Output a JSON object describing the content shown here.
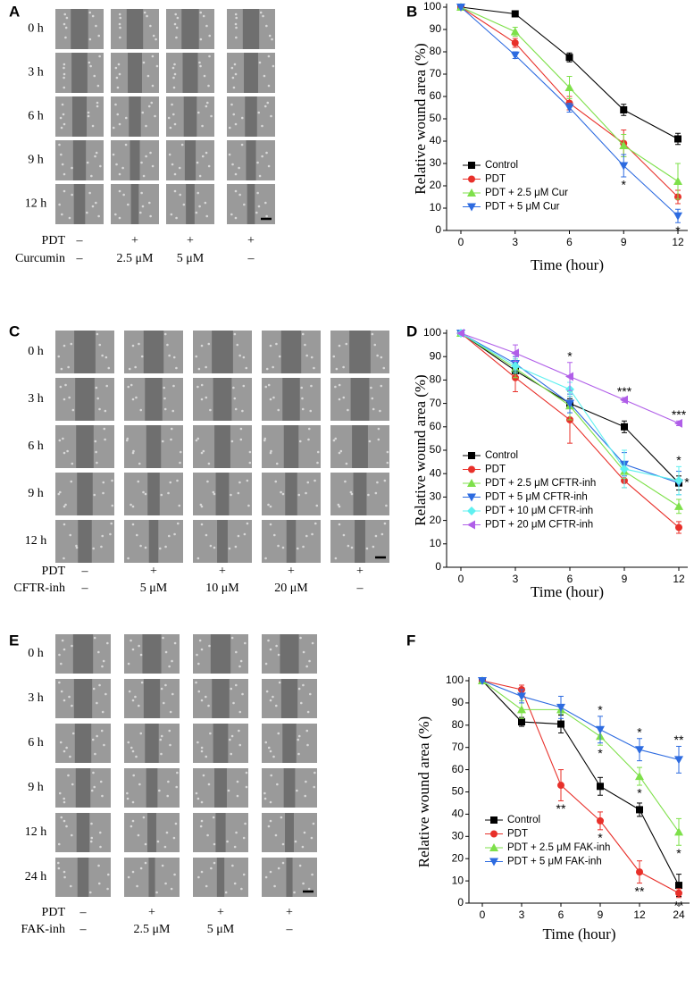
{
  "panel_labels": [
    "A",
    "B",
    "C",
    "D",
    "E",
    "F"
  ],
  "micrographs": [
    {
      "times": [
        "0 h",
        "3 h",
        "6 h",
        "9 h",
        "12 h"
      ],
      "conditions": [
        {
          "label": "PDT",
          "values": [
            "–",
            "+",
            "+",
            "+"
          ]
        },
        {
          "label": "Curcumin",
          "values": [
            "–",
            "2.5 μM",
            "5 μM",
            "–"
          ]
        }
      ]
    },
    {
      "times": [
        "0 h",
        "3 h",
        "6 h",
        "9 h",
        "12 h"
      ],
      "conditions": [
        {
          "label": "PDT",
          "values": [
            "–",
            "+",
            "+",
            "+",
            "+"
          ]
        },
        {
          "label": "CFTR-inh",
          "values": [
            "–",
            "5 μM",
            "10 μM",
            "20 μM",
            "–"
          ]
        }
      ]
    },
    {
      "times": [
        "0 h",
        "3 h",
        "6 h",
        "9 h",
        "12 h",
        "24 h"
      ],
      "conditions": [
        {
          "label": "PDT",
          "values": [
            "–",
            "+",
            "+",
            "+"
          ]
        },
        {
          "label": "FAK-inh",
          "values": [
            "–",
            "2.5 μM",
            "5 μM",
            "–"
          ]
        }
      ]
    }
  ],
  "chart_data": [
    {
      "type": "line",
      "xlabel": "Time (hour)",
      "ylabel": "Relative wound area (%)",
      "categories": [
        "0",
        "3",
        "6",
        "9",
        "12"
      ],
      "ylim": [
        0,
        100
      ],
      "yticks": [
        0,
        10,
        20,
        30,
        40,
        50,
        60,
        70,
        80,
        90,
        100
      ],
      "legend": "lower left",
      "series": [
        {
          "name": "Control",
          "color": "#000000",
          "marker": "square",
          "values": [
            100,
            97,
            77.5,
            54,
            41
          ],
          "errors": [
            0,
            1,
            2,
            2.5,
            2.5
          ],
          "significance": [
            null,
            null,
            null,
            null,
            null
          ]
        },
        {
          "name": "PDT",
          "color": "#e8302a",
          "marker": "circle",
          "values": [
            100,
            84,
            57,
            39,
            15
          ],
          "errors": [
            0,
            2,
            3,
            6,
            3
          ],
          "significance": [
            null,
            null,
            null,
            null,
            null
          ]
        },
        {
          "name": "PDT + 2.5 μM Cur",
          "color": "#7ee04a",
          "marker": "triangle-up",
          "values": [
            100,
            89,
            64,
            38,
            22
          ],
          "errors": [
            0,
            2,
            5,
            5,
            8
          ],
          "significance": [
            null,
            null,
            null,
            null,
            null
          ]
        },
        {
          "name": "PDT + 5 μM Cur",
          "color": "#2d6be0",
          "marker": "triangle-down",
          "values": [
            100,
            78.5,
            55,
            29,
            6.5
          ],
          "errors": [
            0,
            1.5,
            2,
            5,
            3
          ],
          "significance": [
            null,
            null,
            null,
            "*",
            "*"
          ]
        }
      ]
    },
    {
      "type": "line",
      "xlabel": "Time (hour)",
      "ylabel": "Relative wound area (%)",
      "categories": [
        "0",
        "3",
        "6",
        "9",
        "12"
      ],
      "ylim": [
        0,
        100
      ],
      "yticks": [
        0,
        10,
        20,
        30,
        40,
        50,
        60,
        70,
        80,
        90,
        100
      ],
      "legend": "lower left",
      "series": [
        {
          "name": "Control",
          "color": "#000000",
          "marker": "square",
          "values": [
            100,
            84,
            70,
            60,
            36
          ],
          "errors": [
            0,
            3,
            2,
            2.5,
            3
          ],
          "significance": [
            null,
            null,
            null,
            null,
            null
          ]
        },
        {
          "name": "PDT",
          "color": "#e8302a",
          "marker": "circle",
          "values": [
            100,
            81,
            63,
            37,
            17
          ],
          "errors": [
            0,
            6,
            10,
            3,
            2.5
          ],
          "significance": [
            null,
            null,
            null,
            null,
            null
          ]
        },
        {
          "name": "PDT + 2.5 μM CFTR-inh",
          "color": "#7ee04a",
          "marker": "triangle-up",
          "values": [
            100,
            85,
            69,
            41,
            26
          ],
          "errors": [
            0,
            4,
            6,
            3,
            3
          ],
          "significance": [
            null,
            null,
            null,
            null,
            null
          ]
        },
        {
          "name": "PDT + 5 μM CFTR-inh",
          "color": "#2d6be0",
          "marker": "triangle-down",
          "values": [
            100,
            87,
            70,
            44,
            36
          ],
          "errors": [
            0,
            3,
            4,
            5,
            5
          ],
          "significance": [
            null,
            null,
            null,
            null,
            "*"
          ]
        },
        {
          "name": "PDT + 10 μM CFTR-inh",
          "color": "#5ff0f0",
          "marker": "diamond",
          "values": [
            100,
            86,
            76,
            42,
            37
          ],
          "errors": [
            0,
            3,
            3,
            8,
            6
          ],
          "significance": [
            null,
            null,
            null,
            null,
            "*"
          ]
        },
        {
          "name": "PDT + 20 μM CFTR-inh",
          "color": "#b05ee8",
          "marker": "triangle-left",
          "values": [
            100,
            91.5,
            81.5,
            71.5,
            61.5
          ],
          "errors": [
            0,
            3.5,
            6,
            1,
            1
          ],
          "significance": [
            null,
            null,
            "*",
            "***",
            "***"
          ]
        }
      ]
    },
    {
      "type": "line",
      "xlabel": "Time (hour)",
      "ylabel": "Relative wound area (%)",
      "categories": [
        "0",
        "3",
        "6",
        "9",
        "12",
        "24"
      ],
      "ylim": [
        0,
        100
      ],
      "yticks": [
        0,
        10,
        20,
        30,
        40,
        50,
        60,
        70,
        80,
        90,
        100
      ],
      "legend": "lower left",
      "series": [
        {
          "name": "Control",
          "color": "#000000",
          "marker": "square",
          "values": [
            100,
            81.5,
            80.5,
            52.5,
            42,
            8
          ],
          "errors": [
            0,
            2,
            4,
            4,
            3,
            5
          ],
          "significance": [
            null,
            null,
            null,
            null,
            null,
            null
          ]
        },
        {
          "name": "PDT",
          "color": "#e8302a",
          "marker": "circle",
          "values": [
            100,
            96,
            53,
            37,
            14,
            4.5
          ],
          "errors": [
            0,
            2,
            7,
            4,
            5,
            2
          ],
          "significance": [
            null,
            null,
            "**",
            "*",
            "**",
            "**"
          ]
        },
        {
          "name": "PDT + 2.5 μM FAK-inh",
          "color": "#7ee04a",
          "marker": "triangle-up",
          "values": [
            100,
            87,
            87,
            75,
            57,
            32
          ],
          "errors": [
            0,
            4,
            2,
            4,
            4,
            6
          ],
          "significance": [
            null,
            null,
            null,
            "*",
            "*",
            "*"
          ]
        },
        {
          "name": "PDT + 5 μM FAK-inh",
          "color": "#2d6be0",
          "marker": "triangle-down",
          "values": [
            100,
            93,
            88,
            78,
            69,
            64.5
          ],
          "errors": [
            0,
            3,
            5,
            6,
            5,
            6
          ],
          "significance": [
            null,
            null,
            null,
            "*",
            "*",
            "**"
          ]
        }
      ]
    }
  ]
}
